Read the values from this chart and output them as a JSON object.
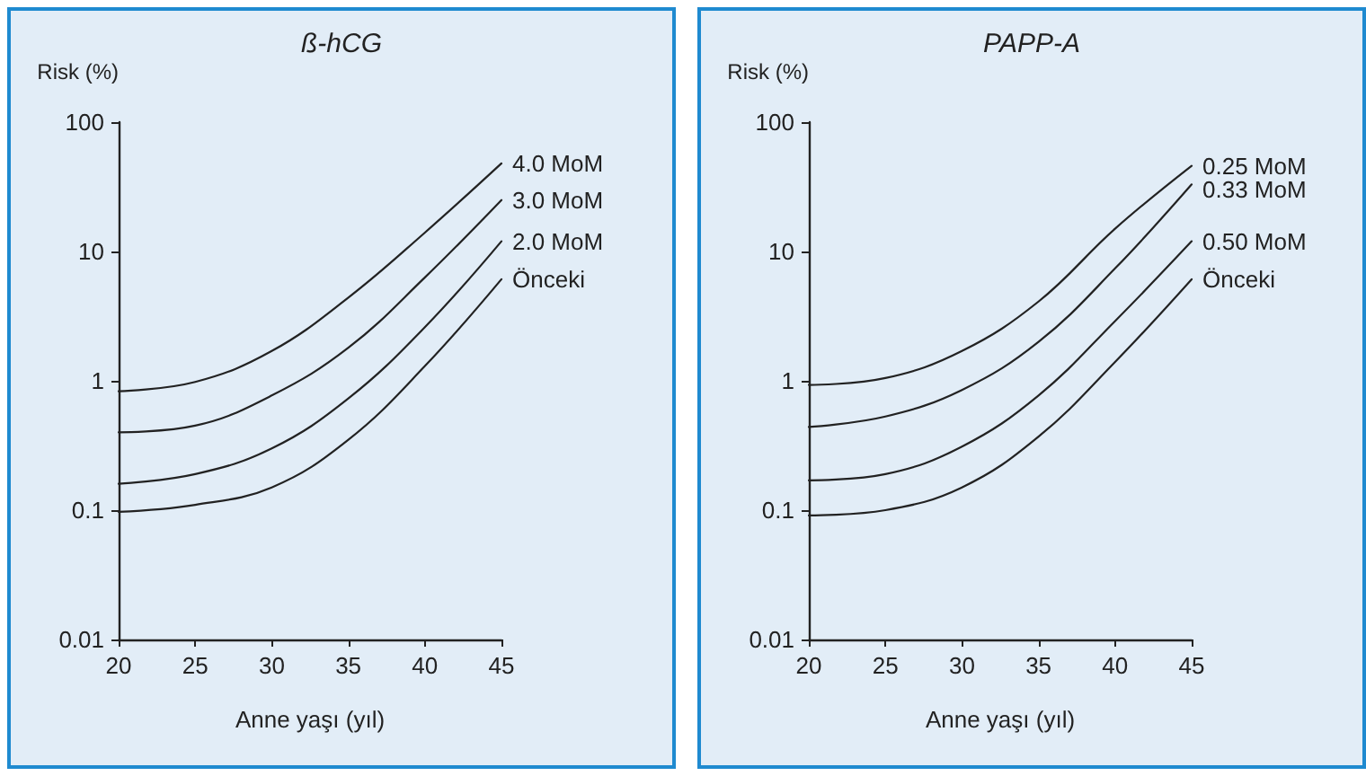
{
  "chart_data": [
    {
      "type": "line",
      "title": "ß-hCG",
      "xlabel": "Anne yaşı (yıl)",
      "ylabel": "Risk (%)",
      "log": "y",
      "grid": false,
      "legend": false,
      "marker": "none",
      "line_style": "solid",
      "xlim": [
        20,
        45
      ],
      "xticks": [
        20,
        25,
        30,
        35,
        40,
        45
      ],
      "ylim": [
        0.01,
        100
      ],
      "yticks": [
        0.01,
        0.1,
        1,
        10,
        100
      ],
      "x": [
        20,
        25,
        30,
        35,
        40,
        45
      ],
      "series": [
        {
          "name": "4.0 MoM",
          "color": "#222222",
          "values": [
            0.83,
            0.98,
            1.7,
            4.4,
            14,
            48
          ]
        },
        {
          "name": "3.0 MoM",
          "color": "#222222",
          "values": [
            0.4,
            0.45,
            0.77,
            1.8,
            6.3,
            25
          ]
        },
        {
          "name": "2.0 MoM",
          "color": "#222222",
          "values": [
            0.16,
            0.19,
            0.3,
            0.73,
            2.6,
            12
          ]
        },
        {
          "name": "Önceki",
          "color": "#222222",
          "values": [
            0.097,
            0.11,
            0.15,
            0.35,
            1.3,
            6.1
          ]
        }
      ]
    },
    {
      "type": "line",
      "title": "PAPP-A",
      "xlabel": "Anne yaşı (yıl)",
      "ylabel": "Risk (%)",
      "log": "y",
      "grid": false,
      "legend": false,
      "marker": "none",
      "line_style": "solid",
      "xlim": [
        20,
        45
      ],
      "xticks": [
        20,
        25,
        30,
        35,
        40,
        45
      ],
      "ylim": [
        0.01,
        100
      ],
      "yticks": [
        0.01,
        0.1,
        1,
        10,
        100
      ],
      "x": [
        20,
        25,
        30,
        35,
        40,
        45
      ],
      "series": [
        {
          "name": "0.25 MoM",
          "color": "#222222",
          "values": [
            0.93,
            1.05,
            1.7,
            4.1,
            15,
            46
          ]
        },
        {
          "name": "0.33 MoM",
          "color": "#222222",
          "values": [
            0.44,
            0.53,
            0.85,
            2,
            7.4,
            33
          ]
        },
        {
          "name": "0.50 MoM",
          "color": "#222222",
          "values": [
            0.17,
            0.19,
            0.31,
            0.77,
            2.9,
            12
          ]
        },
        {
          "name": "Önceki",
          "color": "#222222",
          "values": [
            0.091,
            0.1,
            0.15,
            0.37,
            1.4,
            6.1
          ]
        }
      ]
    }
  ]
}
